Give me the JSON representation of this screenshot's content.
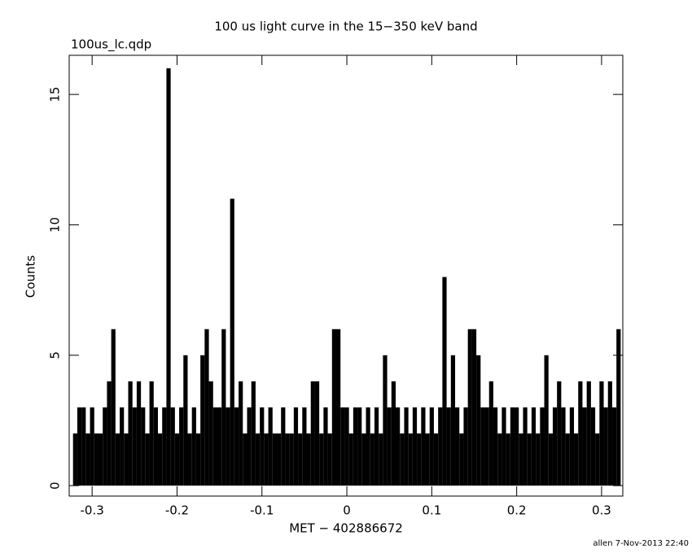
{
  "chart_data": {
    "type": "histogram-line",
    "title": "100 us light curve in the 15−350 keV band",
    "subtitle": "100us_lc.qdp",
    "x_label": "MET − 402886672",
    "y_label": "Counts",
    "footer": "allen  7-Nov-2013 22:40",
    "color": "#000000",
    "x": [
      -0.32,
      -0.315,
      -0.31,
      -0.305,
      -0.3,
      -0.295,
      -0.29,
      -0.285,
      -0.28,
      -0.275,
      -0.27,
      -0.265,
      -0.26,
      -0.255,
      -0.25,
      -0.245,
      -0.24,
      -0.235,
      -0.23,
      -0.225,
      -0.22,
      -0.215,
      -0.21,
      -0.205,
      -0.2,
      -0.195,
      -0.19,
      -0.185,
      -0.18,
      -0.175,
      -0.17,
      -0.165,
      -0.16,
      -0.155,
      -0.15,
      -0.145,
      -0.14,
      -0.135,
      -0.13,
      -0.125,
      -0.12,
      -0.115,
      -0.11,
      -0.105,
      -0.1,
      -0.095,
      -0.09,
      -0.085,
      -0.08,
      -0.075,
      -0.07,
      -0.065,
      -0.06,
      -0.055,
      -0.05,
      -0.045,
      -0.04,
      -0.035,
      -0.03,
      -0.025,
      -0.02,
      -0.015,
      -0.01,
      -0.005,
      0,
      0.005,
      0.01,
      0.015,
      0.02,
      0.025,
      0.03,
      0.035,
      0.04,
      0.045,
      0.05,
      0.055,
      0.06,
      0.065,
      0.07,
      0.075,
      0.08,
      0.085,
      0.09,
      0.095,
      0.1,
      0.105,
      0.11,
      0.115,
      0.12,
      0.125,
      0.13,
      0.135,
      0.14,
      0.145,
      0.15,
      0.155,
      0.16,
      0.165,
      0.17,
      0.175,
      0.18,
      0.185,
      0.19,
      0.195,
      0.2,
      0.205,
      0.21,
      0.215,
      0.22,
      0.225,
      0.23,
      0.235,
      0.24,
      0.245,
      0.25,
      0.255,
      0.26,
      0.265,
      0.27,
      0.275,
      0.28,
      0.285,
      0.29,
      0.295,
      0.3,
      0.305,
      0.31,
      0.315,
      0.32
    ],
    "values": [
      2,
      3,
      3,
      2,
      3,
      2,
      2,
      3,
      4,
      6,
      2,
      3,
      2,
      4,
      3,
      4,
      3,
      2,
      4,
      3,
      2,
      3,
      16,
      3,
      2,
      3,
      5,
      2,
      3,
      2,
      5,
      6,
      4,
      3,
      3,
      6,
      3,
      11,
      3,
      4,
      2,
      3,
      4,
      2,
      3,
      2,
      3,
      2,
      2,
      3,
      2,
      2,
      3,
      2,
      3,
      2,
      4,
      4,
      2,
      3,
      2,
      6,
      6,
      3,
      3,
      2,
      3,
      3,
      2,
      3,
      2,
      3,
      2,
      5,
      3,
      4,
      3,
      2,
      3,
      2,
      3,
      2,
      3,
      2,
      3,
      2,
      3,
      8,
      3,
      5,
      3,
      2,
      3,
      6,
      6,
      5,
      3,
      3,
      4,
      3,
      2,
      3,
      2,
      3,
      3,
      2,
      3,
      2,
      3,
      2,
      3,
      5,
      2,
      3,
      4,
      3,
      2,
      3,
      2,
      4,
      3,
      4,
      3,
      2,
      4,
      3,
      4,
      3,
      6
    ],
    "xlim": [
      -0.327,
      0.325
    ],
    "ylim": [
      -0.4,
      16.5
    ],
    "xticks": [
      -0.3,
      -0.2,
      -0.1,
      0,
      0.1,
      0.2,
      0.3
    ],
    "yticks": [
      0,
      5,
      10,
      15
    ]
  }
}
